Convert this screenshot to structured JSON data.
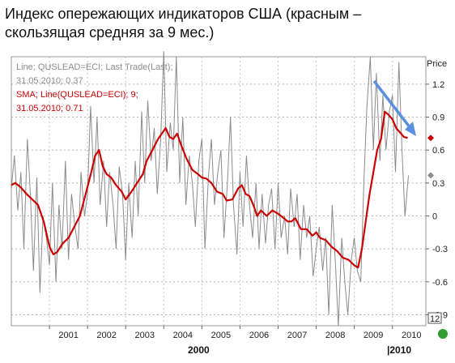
{
  "title": "Индекс опережающих индикаторов США (красным – скользящая средняя за 9 мес.)",
  "legend": {
    "line1": "Line; QUSLEAD=ECI; Last Trade(Last);",
    "line2": "31.05.2010; 0.37",
    "line3": "SMA; Line(QUSLEAD=ECI);  9;",
    "line4": "31.05.2010; 0.71"
  },
  "y_axis_title": "Price",
  "y_ticks": [
    {
      "value": 1.2,
      "label": "1.2"
    },
    {
      "value": 0.9,
      "label": "0.9"
    },
    {
      "value": 0.6,
      "label": "0.6"
    },
    {
      "value": 0.3,
      "label": "0.3"
    },
    {
      "value": 0,
      "label": "0"
    },
    {
      "value": -0.3,
      "label": "-0.3"
    },
    {
      "value": -0.6,
      "label": "-0.6"
    },
    {
      "value": -0.9,
      "label": "-0.9"
    }
  ],
  "x_ticks": [
    "2001",
    "2002",
    "2003",
    "2004",
    "2005",
    "2006",
    "2007",
    "2008",
    "2009",
    "2010"
  ],
  "x_major": [
    {
      "label": "2000"
    },
    {
      "label": "|2010"
    }
  ],
  "interval_box": "12",
  "colors": {
    "raw": "#8c8c8c",
    "sma": "#cc0000",
    "arrow": "#5b8fe0",
    "marker": "#2e9e2e"
  },
  "chart_data": {
    "type": "line",
    "x_unit": "year",
    "x_range": [
      2000.0,
      2010.75
    ],
    "ylim": [
      -1.0,
      1.45
    ],
    "grid": true,
    "series": [
      {
        "name": "Line; QUSLEAD=ECI; Last Trade(Last)",
        "last_label": "31.05.2010; 0.37",
        "points": [
          [
            2000.0,
            0.25
          ],
          [
            2000.08,
            0.55
          ],
          [
            2000.17,
            0.05
          ],
          [
            2000.25,
            0.4
          ],
          [
            2000.33,
            -0.3
          ],
          [
            2000.42,
            0.7
          ],
          [
            2000.5,
            0.2
          ],
          [
            2000.58,
            -0.5
          ],
          [
            2000.67,
            0.35
          ],
          [
            2000.75,
            -0.7
          ],
          [
            2000.83,
            0.0
          ],
          [
            2000.92,
            -0.2
          ],
          [
            2001.0,
            -0.45
          ],
          [
            2001.08,
            0.3
          ],
          [
            2001.17,
            -0.6
          ],
          [
            2001.25,
            0.1
          ],
          [
            2001.33,
            -0.3
          ],
          [
            2001.42,
            0.5
          ],
          [
            2001.5,
            -0.4
          ],
          [
            2001.58,
            0.2
          ],
          [
            2001.67,
            -0.1
          ],
          [
            2001.75,
            -0.3
          ],
          [
            2001.83,
            0.4
          ],
          [
            2001.92,
            0.0
          ],
          [
            2002.0,
            0.2
          ],
          [
            2002.08,
            1.0
          ],
          [
            2002.17,
            0.3
          ],
          [
            2002.25,
            0.9
          ],
          [
            2002.33,
            0.1
          ],
          [
            2002.42,
            0.5
          ],
          [
            2002.5,
            -0.1
          ],
          [
            2002.58,
            0.4
          ],
          [
            2002.67,
            0.1
          ],
          [
            2002.75,
            -0.3
          ],
          [
            2002.83,
            0.45
          ],
          [
            2002.92,
            0.2
          ],
          [
            2003.0,
            -0.4
          ],
          [
            2003.08,
            0.3
          ],
          [
            2003.17,
            -0.2
          ],
          [
            2003.25,
            0.5
          ],
          [
            2003.33,
            0.0
          ],
          [
            2003.42,
            0.95
          ],
          [
            2003.5,
            0.3
          ],
          [
            2003.58,
            1.05
          ],
          [
            2003.67,
            0.5
          ],
          [
            2003.75,
            0.8
          ],
          [
            2003.83,
            0.2
          ],
          [
            2003.92,
            0.7
          ],
          [
            2004.0,
            1.5
          ],
          [
            2004.08,
            0.4
          ],
          [
            2004.17,
            0.85
          ],
          [
            2004.25,
            0.6
          ],
          [
            2004.33,
            1.45
          ],
          [
            2004.42,
            0.3
          ],
          [
            2004.5,
            0.9
          ],
          [
            2004.58,
            0.1
          ],
          [
            2004.67,
            0.55
          ],
          [
            2004.75,
            0.3
          ],
          [
            2004.83,
            -0.1
          ],
          [
            2004.92,
            0.5
          ],
          [
            2005.0,
            0.7
          ],
          [
            2005.08,
            -0.3
          ],
          [
            2005.17,
            0.35
          ],
          [
            2005.25,
            0.7
          ],
          [
            2005.33,
            0.1
          ],
          [
            2005.42,
            0.4
          ],
          [
            2005.5,
            0.6
          ],
          [
            2005.58,
            -0.2
          ],
          [
            2005.67,
            0.3
          ],
          [
            2005.75,
            0.9
          ],
          [
            2005.83,
            0.1
          ],
          [
            2005.92,
            -0.35
          ],
          [
            2006.0,
            0.4
          ],
          [
            2006.08,
            -0.1
          ],
          [
            2006.17,
            0.55
          ],
          [
            2006.25,
            0.1
          ],
          [
            2006.33,
            -0.2
          ],
          [
            2006.42,
            0.3
          ],
          [
            2006.5,
            -0.3
          ],
          [
            2006.58,
            0.2
          ],
          [
            2006.67,
            -0.25
          ],
          [
            2006.75,
            0.1
          ],
          [
            2006.83,
            0.25
          ],
          [
            2006.92,
            -0.3
          ],
          [
            2007.0,
            0.3
          ],
          [
            2007.08,
            -0.2
          ],
          [
            2007.17,
            0.0
          ],
          [
            2007.25,
            -0.35
          ],
          [
            2007.33,
            0.25
          ],
          [
            2007.42,
            -0.1
          ],
          [
            2007.5,
            0.2
          ],
          [
            2007.58,
            -0.4
          ],
          [
            2007.67,
            0.1
          ],
          [
            2007.75,
            -0.2
          ],
          [
            2007.83,
            0.0
          ],
          [
            2007.92,
            -0.55
          ],
          [
            2008.0,
            -0.3
          ],
          [
            2008.08,
            -0.1
          ],
          [
            2008.17,
            -0.5
          ],
          [
            2008.25,
            -0.2
          ],
          [
            2008.33,
            -0.9
          ],
          [
            2008.42,
            0.1
          ],
          [
            2008.5,
            -0.4
          ],
          [
            2008.58,
            -1.0
          ],
          [
            2008.67,
            -0.2
          ],
          [
            2008.75,
            -0.6
          ],
          [
            2008.83,
            -0.9
          ],
          [
            2008.92,
            -0.4
          ],
          [
            2009.0,
            -0.2
          ],
          [
            2009.08,
            -0.5
          ],
          [
            2009.17,
            -0.6
          ],
          [
            2009.25,
            0.3
          ],
          [
            2009.33,
            1.0
          ],
          [
            2009.42,
            1.45
          ],
          [
            2009.5,
            0.6
          ],
          [
            2009.58,
            1.3
          ],
          [
            2009.67,
            0.5
          ],
          [
            2009.75,
            1.1
          ],
          [
            2009.83,
            0.6
          ],
          [
            2009.92,
            0.95
          ],
          [
            2010.0,
            1.1
          ],
          [
            2010.08,
            0.4
          ],
          [
            2010.17,
            1.4
          ],
          [
            2010.25,
            0.6
          ],
          [
            2010.33,
            0.0
          ],
          [
            2010.42,
            0.37
          ]
        ]
      },
      {
        "name": "SMA; Line(QUSLEAD=ECI); 9",
        "last_label": "31.05.2010; 0.71",
        "points": [
          [
            2000.0,
            0.28
          ],
          [
            2000.1,
            0.3
          ],
          [
            2000.25,
            0.26
          ],
          [
            2000.4,
            0.2
          ],
          [
            2000.55,
            0.15
          ],
          [
            2000.7,
            0.1
          ],
          [
            2000.85,
            -0.05
          ],
          [
            2001.0,
            -0.28
          ],
          [
            2001.1,
            -0.35
          ],
          [
            2001.2,
            -0.33
          ],
          [
            2001.35,
            -0.25
          ],
          [
            2001.5,
            -0.2
          ],
          [
            2001.65,
            -0.1
          ],
          [
            2001.8,
            0.0
          ],
          [
            2001.95,
            0.2
          ],
          [
            2002.1,
            0.4
          ],
          [
            2002.2,
            0.55
          ],
          [
            2002.3,
            0.6
          ],
          [
            2002.4,
            0.45
          ],
          [
            2002.5,
            0.38
          ],
          [
            2002.62,
            0.35
          ],
          [
            2002.75,
            0.28
          ],
          [
            2002.9,
            0.22
          ],
          [
            2003.0,
            0.15
          ],
          [
            2003.15,
            0.22
          ],
          [
            2003.3,
            0.3
          ],
          [
            2003.45,
            0.38
          ],
          [
            2003.55,
            0.5
          ],
          [
            2003.7,
            0.6
          ],
          [
            2003.85,
            0.7
          ],
          [
            2003.95,
            0.75
          ],
          [
            2004.05,
            0.8
          ],
          [
            2004.15,
            0.72
          ],
          [
            2004.25,
            0.7
          ],
          [
            2004.35,
            0.75
          ],
          [
            2004.45,
            0.65
          ],
          [
            2004.6,
            0.52
          ],
          [
            2004.75,
            0.42
          ],
          [
            2004.9,
            0.38
          ],
          [
            2005.0,
            0.35
          ],
          [
            2005.12,
            0.34
          ],
          [
            2005.25,
            0.3
          ],
          [
            2005.4,
            0.22
          ],
          [
            2005.55,
            0.2
          ],
          [
            2005.65,
            0.14
          ],
          [
            2005.8,
            0.15
          ],
          [
            2005.95,
            0.25
          ],
          [
            2006.05,
            0.28
          ],
          [
            2006.15,
            0.2
          ],
          [
            2006.25,
            0.18
          ],
          [
            2006.35,
            0.1
          ],
          [
            2006.45,
            0.0
          ],
          [
            2006.55,
            0.05
          ],
          [
            2006.7,
            0.0
          ],
          [
            2006.85,
            0.05
          ],
          [
            2007.0,
            0.02
          ],
          [
            2007.15,
            -0.02
          ],
          [
            2007.25,
            -0.05
          ],
          [
            2007.35,
            -0.05
          ],
          [
            2007.45,
            -0.02
          ],
          [
            2007.6,
            -0.12
          ],
          [
            2007.75,
            -0.12
          ],
          [
            2007.9,
            -0.18
          ],
          [
            2008.0,
            -0.15
          ],
          [
            2008.1,
            -0.2
          ],
          [
            2008.25,
            -0.22
          ],
          [
            2008.4,
            -0.28
          ],
          [
            2008.55,
            -0.32
          ],
          [
            2008.7,
            -0.38
          ],
          [
            2008.85,
            -0.4
          ],
          [
            2009.0,
            -0.45
          ],
          [
            2009.1,
            -0.47
          ],
          [
            2009.2,
            -0.3
          ],
          [
            2009.3,
            -0.05
          ],
          [
            2009.4,
            0.2
          ],
          [
            2009.5,
            0.4
          ],
          [
            2009.6,
            0.6
          ],
          [
            2009.7,
            0.7
          ],
          [
            2009.8,
            0.95
          ],
          [
            2009.9,
            0.92
          ],
          [
            2010.0,
            0.88
          ],
          [
            2010.1,
            0.8
          ],
          [
            2010.2,
            0.76
          ],
          [
            2010.3,
            0.72
          ],
          [
            2010.4,
            0.71
          ]
        ]
      }
    ]
  }
}
